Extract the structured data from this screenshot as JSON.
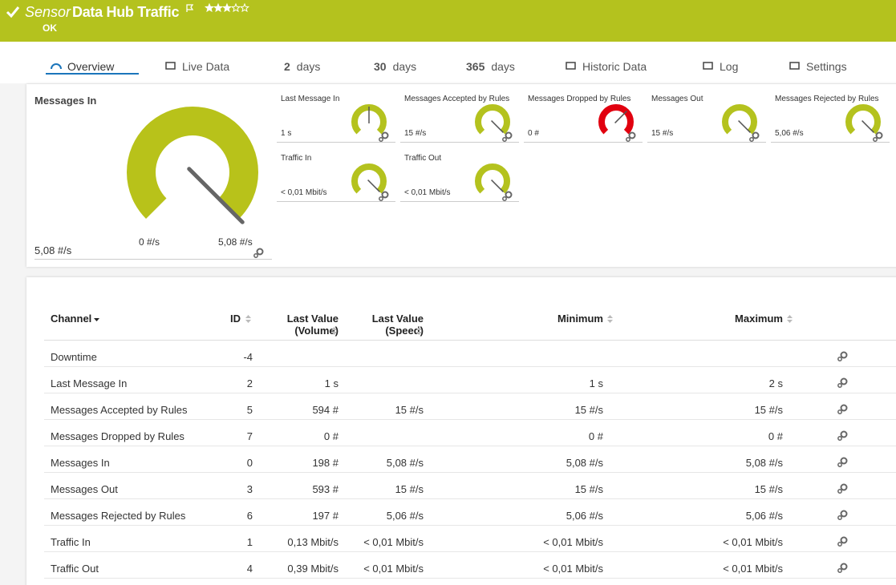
{
  "header": {
    "prefix": "Sensor",
    "title": "Data Hub Traffic",
    "status": "OK"
  },
  "tabs": [
    {
      "label": "Overview"
    },
    {
      "label": "Live Data"
    },
    {
      "count": 2,
      "label": "days"
    },
    {
      "count": 30,
      "label": "days"
    },
    {
      "count": 365,
      "label": "days"
    },
    {
      "label": "Historic Data"
    },
    {
      "label": "Log"
    },
    {
      "label": "Settings"
    }
  ],
  "main_gauge": {
    "title": "Messages In",
    "min_label": "0 #/s",
    "max_label": "5,08 #/s",
    "value_label": "5,08 #/s"
  },
  "small_gauges": [
    {
      "title": "Last Message In",
      "value": "1 s"
    },
    {
      "title": "Messages Accepted by Rules",
      "value": "15 #/s"
    },
    {
      "title": "Messages Dropped by Rules",
      "value": "0 #"
    },
    {
      "title": "Messages Out",
      "value": "15 #/s"
    },
    {
      "title": "Messages Rejected by Rules",
      "value": "5,06 #/s"
    },
    {
      "title": "Traffic In",
      "value": "< 0,01 Mbit/s"
    },
    {
      "title": "Traffic Out",
      "value": "< 0,01 Mbit/s"
    }
  ],
  "table": {
    "columns": [
      {
        "lines": [
          "Channel"
        ]
      },
      {
        "lines": [
          "ID"
        ]
      },
      {
        "lines": [
          "Last Value",
          "(Volume)"
        ]
      },
      {
        "lines": [
          "Last Value",
          "(Speed)"
        ]
      },
      {
        "lines": [
          "Minimum"
        ]
      },
      {
        "lines": [
          "Maximum"
        ]
      }
    ],
    "rows": [
      {
        "channel": "Downtime",
        "id": -4
      },
      {
        "channel": "Last Message In",
        "id": 2,
        "volume": "1 s",
        "minimum": "1 s",
        "maximum": "2 s"
      },
      {
        "channel": "Messages Accepted by Rules",
        "id": 5,
        "volume": "594 #",
        "speed": "15 #/s",
        "minimum": "15 #/s",
        "maximum": "15 #/s"
      },
      {
        "channel": "Messages Dropped by Rules",
        "id": 7,
        "volume": "0 #",
        "minimum": "0 #",
        "maximum": "0 #"
      },
      {
        "channel": "Messages In",
        "id": 0,
        "volume": "198 #",
        "speed": "5,08 #/s",
        "minimum": "5,08 #/s",
        "maximum": "5,08 #/s"
      },
      {
        "channel": "Messages Out",
        "id": 3,
        "volume": "593 #",
        "speed": "15 #/s",
        "minimum": "15 #/s",
        "maximum": "15 #/s"
      },
      {
        "channel": "Messages Rejected by Rules",
        "id": 6,
        "volume": "197 #",
        "speed": "5,06 #/s",
        "minimum": "5,06 #/s",
        "maximum": "5,06 #/s"
      },
      {
        "channel": "Traffic In",
        "id": 1,
        "volume": "0,13 Mbit/s",
        "speed": "< 0,01 Mbit/s",
        "minimum": "< 0,01 Mbit/s",
        "maximum": "< 0,01 Mbit/s"
      },
      {
        "channel": "Traffic Out",
        "id": 4,
        "volume": "0,39 Mbit/s",
        "speed": "< 0,01 Mbit/s",
        "minimum": "< 0,01 Mbit/s",
        "maximum": "< 0,01 Mbit/s"
      }
    ]
  }
}
